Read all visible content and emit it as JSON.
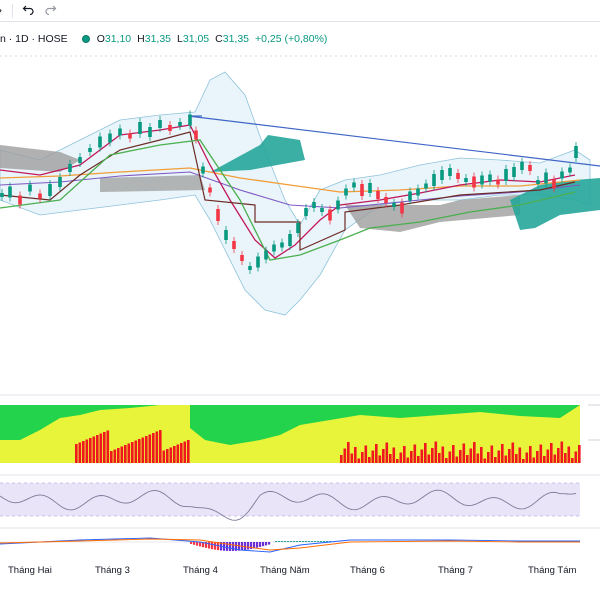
{
  "legend": {
    "symbol": "n · 1D · HOSE",
    "open_label": "O",
    "open": "31,10",
    "high_label": "H",
    "high": "31,35",
    "low_label": "L",
    "low": "31,05",
    "close_label": "C",
    "close": "31,35",
    "change": "+0,25 (+0,80%)"
  },
  "toolbar": {
    "icons": [
      "dropdown-icon",
      "undo-icon",
      "redo-icon"
    ]
  },
  "x_axis": {
    "labels": [
      "Tháng Hai",
      "Tháng 3",
      "Tháng 4",
      "Tháng Năm",
      "Tháng 6",
      "Tháng 7",
      "Tháng Tám"
    ]
  },
  "colors": {
    "up": "#089981",
    "down": "#f23645",
    "candle_green": "#26a69a",
    "ichimoku_red": "#c2185b",
    "trendline": "#3f66c6",
    "cloud_teal": "#26a69a",
    "cloud_gray": "#9e9e9e",
    "bb_fill": "#cfe8f5",
    "histo_green": "#22d34b",
    "histo_yellow": "#e7f43a",
    "histo_red": "#f0181f",
    "rsi_band": "#e9e4f7",
    "macd_purple": "#6b2dd6"
  },
  "chart_data": {
    "type": "candlestick",
    "title": "",
    "last_close": 31.35,
    "panes": [
      "price",
      "histogram",
      "rsi",
      "macd"
    ]
  }
}
